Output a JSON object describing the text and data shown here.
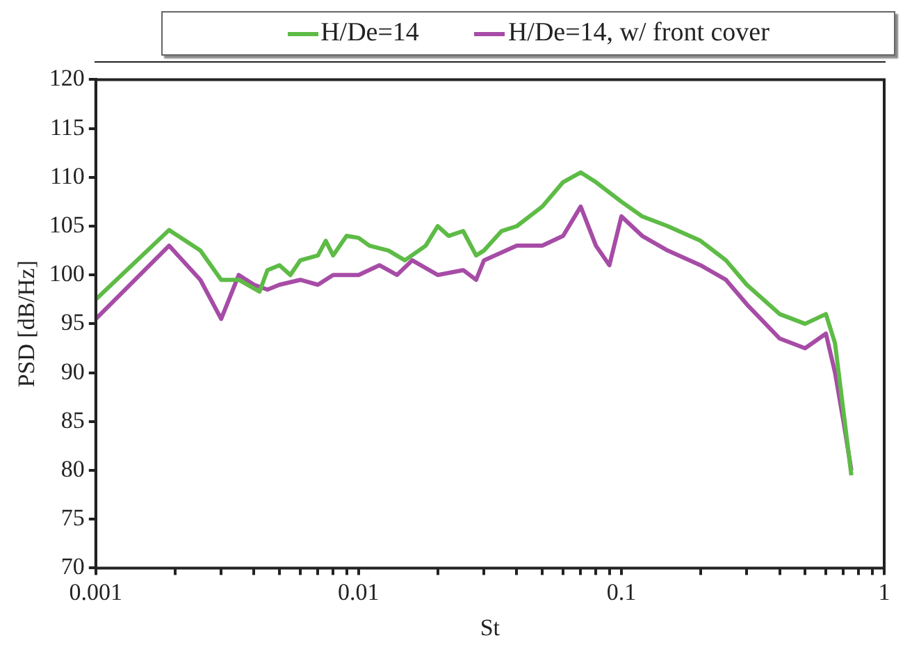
{
  "chart_data": {
    "type": "line",
    "xlabel": "St",
    "ylabel": "PSD [dB/Hz]",
    "log": "x",
    "grid": false,
    "legend": "top",
    "marker": "none",
    "line_style": "solid",
    "xlim": [
      0.001,
      1
    ],
    "xticks": [
      0.001,
      {
        "value": 0.002,
        "label": null
      },
      {
        "value": 0.003,
        "label": null
      },
      {
        "value": 0.004,
        "label": null
      },
      {
        "value": 0.005,
        "label": null
      },
      {
        "value": 0.006,
        "label": null
      },
      {
        "value": 0.007,
        "label": null
      },
      {
        "value": 0.008,
        "label": null
      },
      {
        "value": 0.009,
        "label": null
      },
      0.01,
      {
        "value": 0.02,
        "label": null
      },
      {
        "value": 0.03,
        "label": null
      },
      {
        "value": 0.04,
        "label": null
      },
      {
        "value": 0.05,
        "label": null
      },
      {
        "value": 0.06,
        "label": null
      },
      {
        "value": 0.07,
        "label": null
      },
      {
        "value": 0.08,
        "label": null
      },
      {
        "value": 0.09,
        "label": null
      },
      0.1,
      {
        "value": 0.2,
        "label": null
      },
      {
        "value": 0.3,
        "label": null
      },
      {
        "value": 0.4,
        "label": null
      },
      {
        "value": 0.5,
        "label": null
      },
      {
        "value": 0.6,
        "label": null
      },
      {
        "value": 0.7,
        "label": null
      },
      {
        "value": 0.8,
        "label": null
      },
      {
        "value": 0.9,
        "label": null
      },
      1
    ],
    "ylim": [
      70,
      120
    ],
    "yticks": [
      70,
      75,
      80,
      85,
      90,
      95,
      100,
      105,
      110,
      115,
      120
    ],
    "series": [
      {
        "name": "H/De=14",
        "color": "#5dbb46",
        "x": [
          0.001,
          0.0019,
          0.0025,
          0.003,
          0.0035,
          0.0042,
          0.0045,
          0.005,
          0.0055,
          0.006,
          0.007,
          0.0075,
          0.008,
          0.009,
          0.01,
          0.011,
          0.013,
          0.015,
          0.018,
          0.02,
          0.022,
          0.025,
          0.028,
          0.03,
          0.035,
          0.04,
          0.05,
          0.06,
          0.07,
          0.08,
          0.1,
          0.12,
          0.15,
          0.2,
          0.25,
          0.3,
          0.4,
          0.5,
          0.6,
          0.65,
          0.7,
          0.75
        ],
        "values": [
          97.5,
          104.6,
          102.5,
          99.5,
          99.5,
          98.3,
          100.5,
          101,
          100,
          101.5,
          102,
          103.5,
          102,
          104,
          103.8,
          103,
          102.5,
          101.5,
          103,
          105,
          104,
          104.5,
          102,
          102.5,
          104.5,
          105,
          107,
          109.5,
          110.5,
          109.5,
          107.5,
          106,
          105,
          103.5,
          101.5,
          99,
          96,
          95,
          96,
          93,
          86,
          79.5
        ]
      },
      {
        "name": "H/De=14, w/ front cover",
        "color": "#a64ca6",
        "x": [
          0.001,
          0.0019,
          0.0025,
          0.003,
          0.0035,
          0.004,
          0.0045,
          0.005,
          0.006,
          0.007,
          0.008,
          0.01,
          0.012,
          0.014,
          0.016,
          0.02,
          0.025,
          0.028,
          0.03,
          0.04,
          0.05,
          0.06,
          0.07,
          0.08,
          0.09,
          0.1,
          0.12,
          0.15,
          0.2,
          0.25,
          0.3,
          0.4,
          0.5,
          0.6,
          0.65,
          0.7,
          0.75
        ],
        "values": [
          95.5,
          103,
          99.5,
          95.5,
          100,
          99,
          98.5,
          99,
          99.5,
          99,
          100,
          100,
          101,
          100,
          101.5,
          100,
          100.5,
          99.5,
          101.5,
          103,
          103,
          104,
          107,
          103,
          101,
          106,
          104,
          102.5,
          101,
          99.5,
          97,
          93.5,
          92.5,
          94,
          90,
          85,
          80
        ]
      }
    ]
  }
}
